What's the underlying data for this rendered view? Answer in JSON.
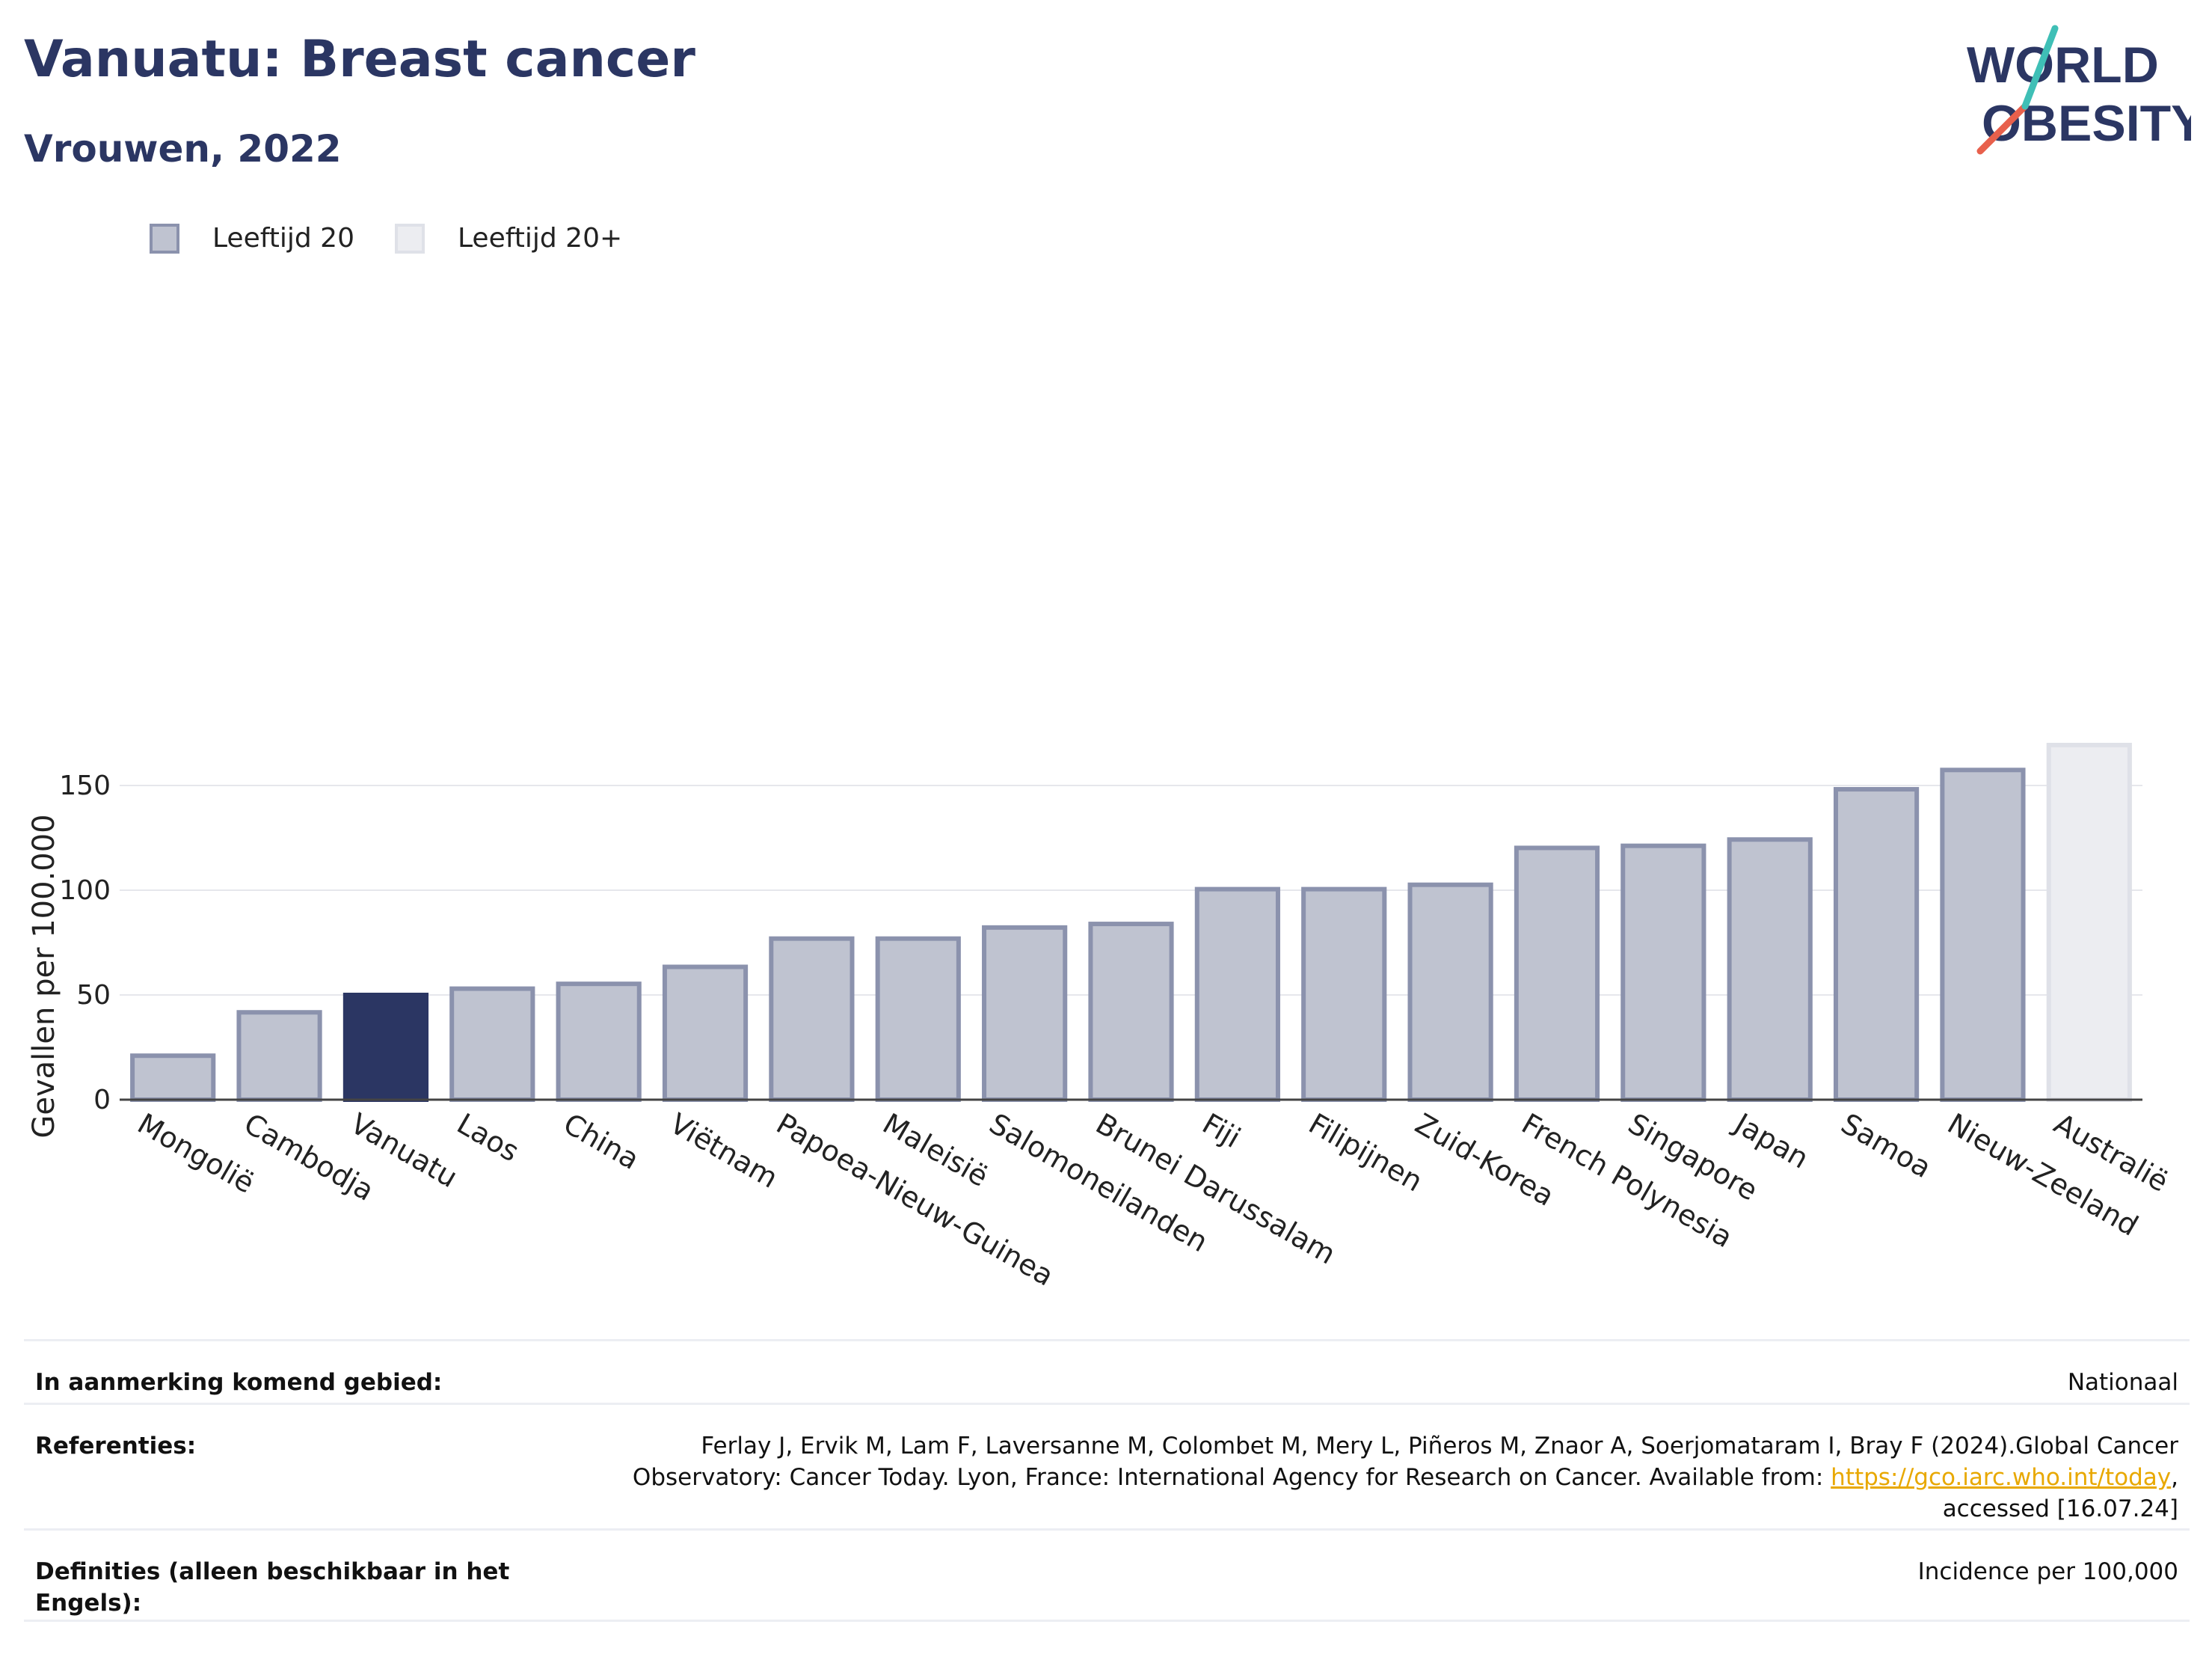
{
  "header": {
    "title": "Vanuatu: Breast cancer",
    "subtitle": "Vrouwen, 2022",
    "logo_line1": "WORLD",
    "logo_line2": "OBESITY"
  },
  "legend": {
    "items": [
      {
        "label": "Leeftijd 20",
        "icon": "square-swatch"
      },
      {
        "label": "Leeftijd 20+",
        "icon": "square-swatch"
      }
    ]
  },
  "colors": {
    "highlight": "#2b3663",
    "bar_fill": "#bfc3d0",
    "bar_border": "#8b92ad",
    "bar_alt_fill": "#ecedf1",
    "bar_alt_border": "#dfe1e8",
    "link": "#e8a800"
  },
  "chart_data": {
    "type": "bar",
    "title": "",
    "xlabel": "",
    "ylabel": "Gevallen per 100.000",
    "ylim": [
      0,
      175
    ],
    "yticks": [
      0,
      50,
      100,
      150
    ],
    "grid": true,
    "legend_position": "top-left",
    "categories": [
      "Mongolië",
      "Cambodja",
      "Vanuatu",
      "Laos",
      "China",
      "Viëtnam",
      "Papoea-Nieuw-Guinea",
      "Maleisië",
      "Salomoneilanden",
      "Brunei Darussalam",
      "Fiji",
      "Filipijnen",
      "Zuid-Korea",
      "French Polynesia",
      "Singapore",
      "Japan",
      "Samoa",
      "Nieuw-Zeeland",
      "Australië"
    ],
    "values": [
      21,
      41.7,
      50,
      53,
      55.3,
      63.4,
      76.9,
      76.9,
      82.2,
      83.9,
      100.5,
      100.5,
      102.6,
      120.2,
      121.2,
      124.2,
      148.2,
      157.4,
      169.3
    ],
    "series_index": [
      0,
      0,
      0,
      0,
      0,
      0,
      0,
      0,
      0,
      0,
      0,
      0,
      0,
      0,
      0,
      0,
      0,
      0,
      1
    ],
    "series": [
      {
        "name": "Leeftijd 20"
      },
      {
        "name": "Leeftijd 20+"
      }
    ],
    "highlight": "Vanuatu"
  },
  "footer": {
    "rows": [
      {
        "label": "In aanmerking komend gebied:",
        "value": "Nationaal"
      },
      {
        "label": "Referenties:",
        "value_before": "Ferlay J, Ervik M, Lam F, Laversanne M, Colombet M, Mery L, Piñeros M, Znaor A, Soerjomataram I, Bray F (2024).Global Cancer Observatory: Cancer Today. Lyon, France: International Agency for Research on Cancer. Available from: ",
        "link": "https://gco.iarc.who.int/today",
        "value_after": ", accessed [16.07.24]"
      },
      {
        "label": "Definities (alleen beschikbaar in het Engels):",
        "value": "Incidence per 100,000"
      }
    ]
  }
}
